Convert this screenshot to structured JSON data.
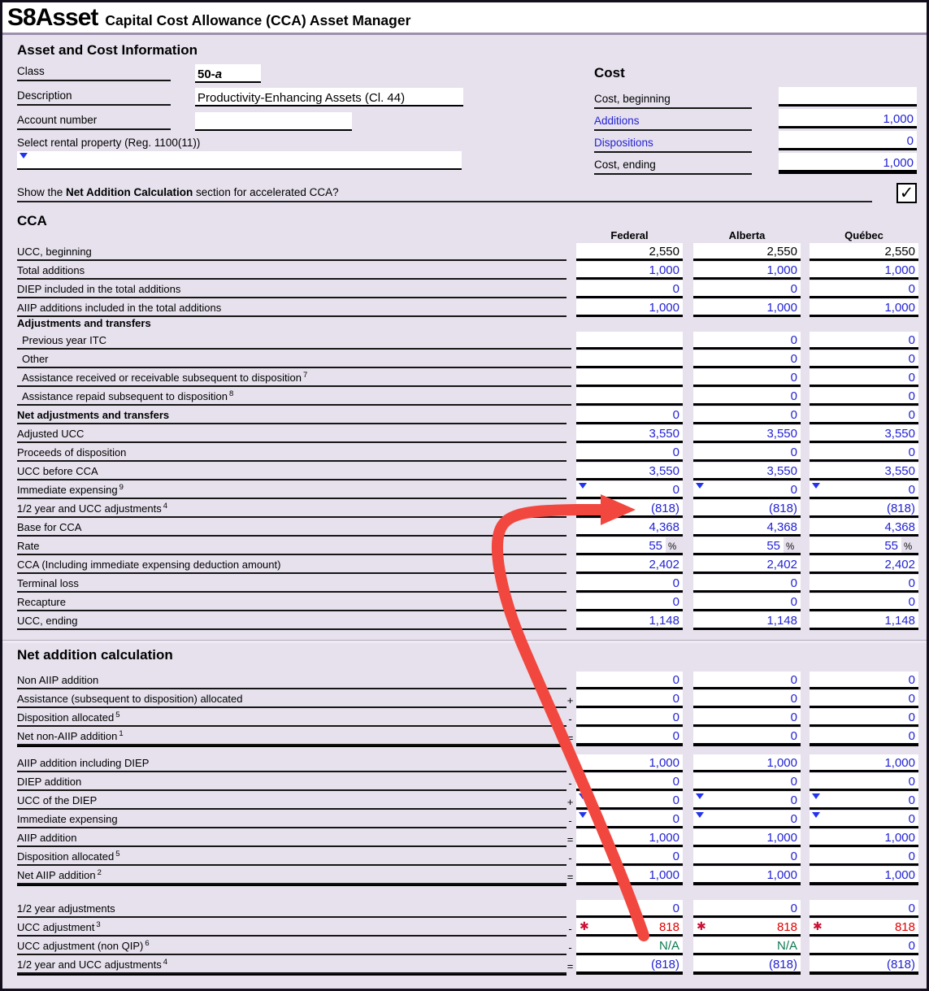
{
  "title": {
    "form_id": "S8Asset",
    "subtitle": "Capital Cost Allowance (CCA) Asset Manager"
  },
  "asset_info": {
    "heading": "Asset and Cost Information",
    "class_label": "Class",
    "class_value": "50-",
    "class_value_suffix": "a",
    "description_label": "Description",
    "description_value": "Productivity-Enhancing Assets (Cl. 44)",
    "account_label": "Account number",
    "account_value": "",
    "rental_label": "Select rental property (Reg. 1100(11))",
    "rental_value": ""
  },
  "cost": {
    "heading": "Cost",
    "rows": [
      {
        "label": "Cost, beginning",
        "value": "",
        "link": false,
        "total": false
      },
      {
        "label": "Additions",
        "value": "1,000",
        "link": true,
        "total": false
      },
      {
        "label": "Dispositions",
        "value": "0",
        "link": true,
        "total": false
      },
      {
        "label": "Cost, ending",
        "value": "1,000",
        "link": false,
        "total": true
      }
    ]
  },
  "show_toggle": {
    "text_before": "Show the ",
    "text_bold": "Net Addition Calculation",
    "text_after": " section for accelerated CCA?",
    "checked": true
  },
  "columns": [
    "Federal",
    "Alberta",
    "Québec"
  ],
  "cca": {
    "heading": "CCA",
    "rows": [
      {
        "label": "UCC, beginning",
        "values": [
          "2,550",
          "2,550",
          "2,550"
        ],
        "color": "black"
      },
      {
        "label": "Total additions",
        "values": [
          "1,000",
          "1,000",
          "1,000"
        ]
      },
      {
        "label": "DIEP included in the total additions",
        "values": [
          "0",
          "0",
          "0"
        ]
      },
      {
        "label": "AIIP additions included in the total additions",
        "values": [
          "1,000",
          "1,000",
          "1,000"
        ]
      },
      {
        "subheading": "Adjustments and transfers"
      },
      {
        "label": "Previous year ITC",
        "indent": true,
        "values": [
          "",
          "0",
          "0"
        ]
      },
      {
        "label": "Other",
        "indent": true,
        "values": [
          "",
          "0",
          "0"
        ]
      },
      {
        "label": "Assistance received or receivable subsequent to disposition",
        "sup": "7",
        "indent": true,
        "values": [
          "",
          "0",
          "0"
        ]
      },
      {
        "label": "Assistance repaid subsequent to disposition",
        "sup": "8",
        "indent": true,
        "values": [
          "",
          "0",
          "0"
        ]
      },
      {
        "label": "Net adjustments and transfers",
        "bold": true,
        "values": [
          "0",
          "0",
          "0"
        ]
      },
      {
        "label": "Adjusted UCC",
        "values": [
          "3,550",
          "3,550",
          "3,550"
        ]
      },
      {
        "label": "Proceeds of disposition",
        "values": [
          "0",
          "0",
          "0"
        ]
      },
      {
        "label": "UCC before CCA",
        "values": [
          "3,550",
          "3,550",
          "3,550"
        ]
      },
      {
        "label": "Immediate expensing",
        "sup": "9",
        "triangles": true,
        "values": [
          "0",
          "0",
          "0"
        ]
      },
      {
        "label": "1/2 year and UCC adjustments",
        "sup": "4",
        "values": [
          "(818)",
          "(818)",
          "(818)"
        ]
      },
      {
        "label": "Base for CCA",
        "values": [
          "4,368",
          "4,368",
          "4,368"
        ]
      },
      {
        "label": "Rate",
        "suffix": "%",
        "values": [
          "55",
          "55",
          "55"
        ]
      },
      {
        "label": "CCA (Including immediate expensing deduction amount)",
        "values": [
          "2,402",
          "2,402",
          "2,402"
        ]
      },
      {
        "label": "Terminal loss",
        "values": [
          "0",
          "0",
          "0"
        ]
      },
      {
        "label": "Recapture",
        "values": [
          "0",
          "0",
          "0"
        ]
      },
      {
        "label": "UCC, ending",
        "values": [
          "1,148",
          "1,148",
          "1,148"
        ]
      }
    ]
  },
  "net_addition": {
    "heading": "Net addition calculation",
    "rows": [
      {
        "label": "Non AIIP addition",
        "values": [
          "0",
          "0",
          "0"
        ]
      },
      {
        "label": "Assistance (subsequent to disposition) allocated",
        "op": "+",
        "values": [
          "0",
          "0",
          "0"
        ]
      },
      {
        "label": "Disposition allocated",
        "sup": "5",
        "op": "-",
        "values": [
          "0",
          "0",
          "0"
        ]
      },
      {
        "label": "Net non-AIIP addition",
        "sup": "1",
        "op": "=",
        "total": true,
        "values": [
          "0",
          "0",
          "0"
        ]
      },
      {
        "label": "AIIP addition including DIEP",
        "gap_before": 10,
        "values": [
          "1,000",
          "1,000",
          "1,000"
        ]
      },
      {
        "label": "DIEP addition",
        "op": "-",
        "values": [
          "0",
          "0",
          "0"
        ]
      },
      {
        "label": "UCC of the DIEP",
        "op": "+",
        "triangles": true,
        "values": [
          "0",
          "0",
          "0"
        ]
      },
      {
        "label": "Immediate expensing",
        "op": "-",
        "triangles": true,
        "values": [
          "0",
          "0",
          "0"
        ]
      },
      {
        "label": "AIIP addition",
        "op": "=",
        "values": [
          "1,000",
          "1,000",
          "1,000"
        ]
      },
      {
        "label": "Disposition allocated",
        "sup": "5",
        "op": "-",
        "values": [
          "0",
          "0",
          "0"
        ]
      },
      {
        "label": "Net AIIP addition",
        "sup": "2",
        "op": "=",
        "total": true,
        "values": [
          "1,000",
          "1,000",
          "1,000"
        ]
      },
      {
        "label": "1/2 year adjustments",
        "gap_before": 18,
        "values": [
          "0",
          "0",
          "0"
        ]
      },
      {
        "label": "UCC adjustment",
        "sup": "3",
        "op": "-",
        "asterisk": true,
        "color": "red",
        "values": [
          "818",
          "818",
          "818"
        ]
      },
      {
        "label": "UCC adjustment (non QIP)",
        "sup": "6",
        "op": "-",
        "colors": [
          "green",
          "green",
          "blue"
        ],
        "values": [
          "N/A",
          "N/A",
          "0"
        ]
      },
      {
        "label": "1/2 year and UCC adjustments",
        "sup": "4",
        "op": "=",
        "total": true,
        "values": [
          "(818)",
          "(818)",
          "(818)"
        ]
      }
    ]
  },
  "markers": {
    "asterisk": "✱",
    "check": "✓"
  },
  "annotation": {
    "type": "arrow",
    "arrow_color": "#f2473f"
  },
  "colors": {
    "background": "#e6e1ed",
    "value_blue": "#2222d4",
    "value_red": "#e00000",
    "na_green": "#0e7a52",
    "link_blue": "#2222d4",
    "titlebar_divider": "#9c90ae",
    "arrow_red": "#f2473f"
  }
}
